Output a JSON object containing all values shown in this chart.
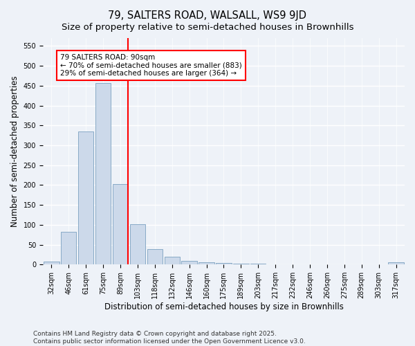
{
  "title": "79, SALTERS ROAD, WALSALL, WS9 9JD",
  "subtitle": "Size of property relative to semi-detached houses in Brownhills",
  "xlabel": "Distribution of semi-detached houses by size in Brownhills",
  "ylabel": "Number of semi-detached properties",
  "bar_labels": [
    "32sqm",
    "46sqm",
    "61sqm",
    "75sqm",
    "89sqm",
    "103sqm",
    "118sqm",
    "132sqm",
    "146sqm",
    "160sqm",
    "175sqm",
    "189sqm",
    "203sqm",
    "217sqm",
    "232sqm",
    "246sqm",
    "260sqm",
    "275sqm",
    "289sqm",
    "303sqm",
    "317sqm"
  ],
  "bar_values": [
    8,
    83,
    335,
    457,
    202,
    102,
    38,
    20,
    9,
    5,
    4,
    3,
    2,
    1,
    1,
    1,
    0,
    0,
    0,
    0,
    5
  ],
  "bar_color": "#ccd9ea",
  "bar_edge_color": "#7aa0c0",
  "vline_color": "red",
  "vline_x_index": 4,
  "annotation_text": "79 SALTERS ROAD: 90sqm\n← 70% of semi-detached houses are smaller (883)\n29% of semi-detached houses are larger (364) →",
  "annotation_box_color": "white",
  "annotation_box_edge_color": "red",
  "ylim": [
    0,
    570
  ],
  "yticks": [
    0,
    50,
    100,
    150,
    200,
    250,
    300,
    350,
    400,
    450,
    500,
    550
  ],
  "footer_text": "Contains HM Land Registry data © Crown copyright and database right 2025.\nContains public sector information licensed under the Open Government Licence v3.0.",
  "bg_color": "#eef2f8",
  "grid_color": "white",
  "title_fontsize": 10.5,
  "subtitle_fontsize": 9.5,
  "label_fontsize": 8.5,
  "tick_fontsize": 7,
  "footer_fontsize": 6.5,
  "annot_fontsize": 7.5
}
